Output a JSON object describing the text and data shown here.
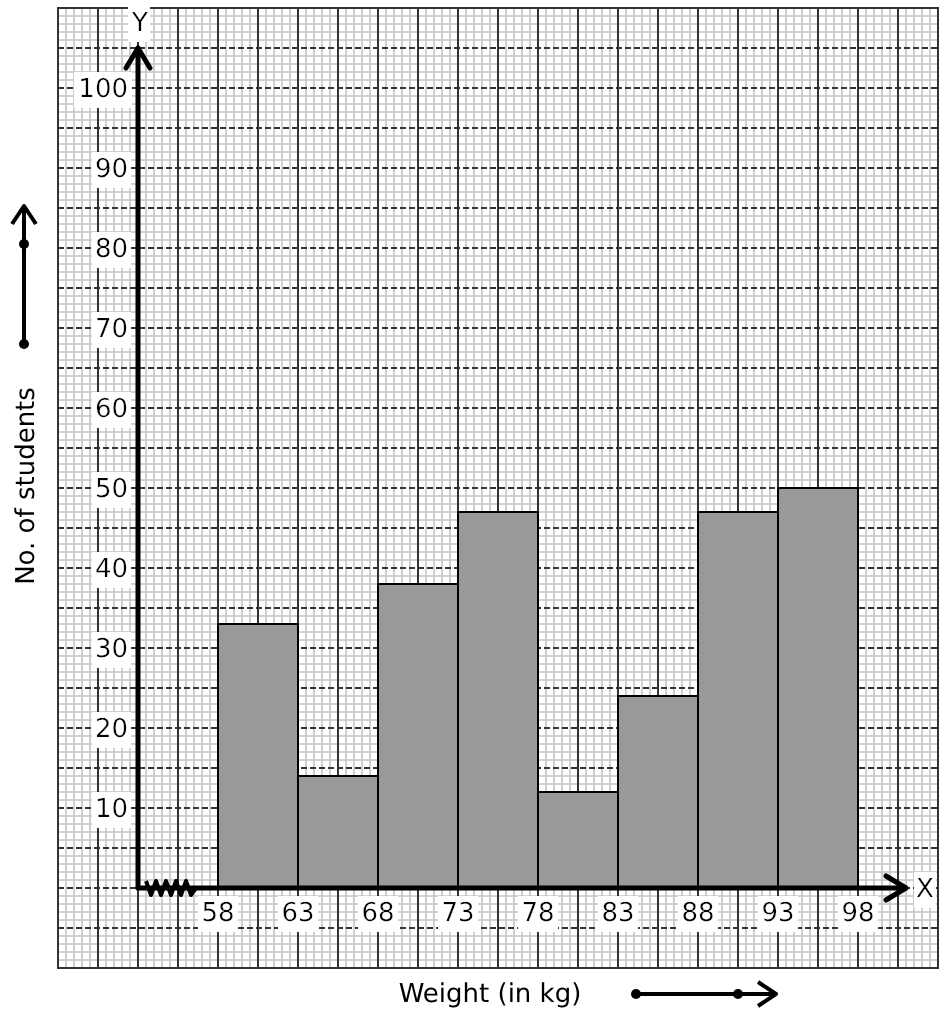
{
  "chart_data": {
    "type": "histogram",
    "bins": [
      58,
      63,
      68,
      73,
      78,
      83,
      88,
      93,
      98
    ],
    "values": [
      33,
      14,
      38,
      47,
      12,
      24,
      47,
      50
    ],
    "color": "#999999",
    "xlabel": "Weight (in kg)",
    "ylabel": "No. of students",
    "xlim": [
      53,
      101
    ],
    "ylim": [
      0,
      105
    ],
    "xticks": [
      58,
      63,
      68,
      73,
      78,
      83,
      88,
      93,
      98
    ],
    "yticks": [
      10,
      20,
      30,
      40,
      50,
      60,
      70,
      80,
      90,
      100
    ],
    "grid": true,
    "annotations": [
      "Y",
      "X"
    ]
  }
}
